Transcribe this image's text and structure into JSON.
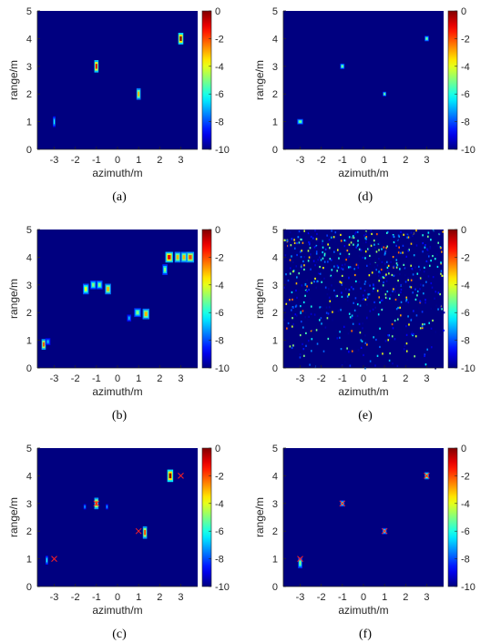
{
  "chart_data": [
    {
      "type": "heatmap",
      "panel": "a",
      "caption": "(a)",
      "xlabel": "azimuth/m",
      "ylabel": "range/m",
      "xlim": [
        -3.8,
        3.8
      ],
      "ylim": [
        0,
        5
      ],
      "xticks": [
        "-3",
        "-2",
        "-1",
        "0",
        "1",
        "2",
        "3"
      ],
      "yticks": [
        "0",
        "1",
        "2",
        "3",
        "4",
        "5"
      ],
      "colorbar": {
        "ticks": [
          "0",
          "-2",
          "-4",
          "-6",
          "-8",
          "-10"
        ],
        "range": [
          -10,
          0
        ],
        "colormap": "jet"
      },
      "background_value": -10,
      "hotspots": [
        {
          "x": -3.0,
          "y": 1.0,
          "peak": -6,
          "w": 0.03,
          "h": 0.12
        },
        {
          "x": -1.0,
          "y": 3.0,
          "peak": -1,
          "w": 0.05,
          "h": 0.14
        },
        {
          "x": 1.0,
          "y": 2.0,
          "peak": -3,
          "w": 0.05,
          "h": 0.13
        },
        {
          "x": 3.0,
          "y": 4.0,
          "peak": 0,
          "w": 0.06,
          "h": 0.13
        }
      ],
      "markers": []
    },
    {
      "type": "heatmap",
      "panel": "d",
      "caption": "(d)",
      "xlabel": "azimuth/m",
      "ylabel": "range/m",
      "xlim": [
        -3.8,
        3.8
      ],
      "ylim": [
        0,
        5
      ],
      "xticks": [
        "-3",
        "-2",
        "-1",
        "0",
        "1",
        "2",
        "3"
      ],
      "yticks": [
        "0",
        "1",
        "2",
        "3",
        "4",
        "5"
      ],
      "colorbar": {
        "ticks": [
          "0",
          "-2",
          "-4",
          "-6",
          "-8",
          "-10"
        ],
        "range": [
          -10,
          0
        ],
        "colormap": "jet"
      },
      "background_value": -10,
      "hotspots": [
        {
          "x": -3.0,
          "y": 1.0,
          "peak": -5,
          "w": 0.07,
          "h": 0.06
        },
        {
          "x": -1.0,
          "y": 3.0,
          "peak": -5,
          "w": 0.05,
          "h": 0.06
        },
        {
          "x": 1.0,
          "y": 2.0,
          "peak": -5,
          "w": 0.04,
          "h": 0.05
        },
        {
          "x": 3.0,
          "y": 4.0,
          "peak": -5,
          "w": 0.05,
          "h": 0.06
        }
      ],
      "markers": []
    },
    {
      "type": "heatmap",
      "panel": "b",
      "caption": "(b)",
      "xlabel": "azimuth/m",
      "ylabel": "range/m",
      "xlim": [
        -3.8,
        3.8
      ],
      "ylim": [
        0,
        5
      ],
      "xticks": [
        "-3",
        "-2",
        "-1",
        "0",
        "1",
        "2",
        "3"
      ],
      "yticks": [
        "0",
        "1",
        "2",
        "3",
        "4",
        "5"
      ],
      "colorbar": {
        "ticks": [
          "0",
          "-2",
          "-4",
          "-6",
          "-8",
          "-10"
        ],
        "range": [
          -10,
          0
        ],
        "colormap": "jet"
      },
      "background_value": -10,
      "hotspots": [
        {
          "x": -3.5,
          "y": 0.85,
          "peak": -2,
          "w": 0.05,
          "h": 0.12
        },
        {
          "x": -3.3,
          "y": 0.95,
          "peak": -7,
          "w": 0.06,
          "h": 0.08
        },
        {
          "x": -1.5,
          "y": 2.85,
          "peak": -4,
          "w": 0.07,
          "h": 0.12
        },
        {
          "x": -1.15,
          "y": 3.0,
          "peak": -5,
          "w": 0.07,
          "h": 0.1
        },
        {
          "x": -0.85,
          "y": 3.0,
          "peak": -5,
          "w": 0.07,
          "h": 0.1
        },
        {
          "x": -0.45,
          "y": 2.85,
          "peak": -3,
          "w": 0.07,
          "h": 0.12
        },
        {
          "x": 0.55,
          "y": 1.8,
          "peak": -7,
          "w": 0.05,
          "h": 0.08
        },
        {
          "x": 0.95,
          "y": 2.0,
          "peak": -5,
          "w": 0.08,
          "h": 0.1
        },
        {
          "x": 1.35,
          "y": 1.95,
          "peak": -3,
          "w": 0.08,
          "h": 0.12
        },
        {
          "x": 2.25,
          "y": 3.55,
          "peak": -5,
          "w": 0.06,
          "h": 0.12
        },
        {
          "x": 2.45,
          "y": 4.0,
          "peak": -1,
          "w": 0.09,
          "h": 0.12
        },
        {
          "x": 2.85,
          "y": 4.0,
          "peak": -3,
          "w": 0.07,
          "h": 0.12
        },
        {
          "x": 3.15,
          "y": 4.0,
          "peak": -3,
          "w": 0.07,
          "h": 0.12
        },
        {
          "x": 3.45,
          "y": 4.0,
          "peak": -2,
          "w": 0.09,
          "h": 0.12
        }
      ],
      "markers": []
    },
    {
      "type": "heatmap",
      "panel": "e",
      "caption": "(e)",
      "xlabel": "azimuth/m",
      "ylabel": "range/m",
      "xlim": [
        -3.8,
        3.8
      ],
      "ylim": [
        0,
        5
      ],
      "xticks": [
        "-3",
        "-2",
        "-1",
        "0",
        "1",
        "2",
        "3"
      ],
      "yticks": [
        "0",
        "1",
        "2",
        "3",
        "4",
        "5"
      ],
      "colorbar": {
        "ticks": [
          "0",
          "-2",
          "-4",
          "-6",
          "-8",
          "-10"
        ],
        "range": [
          -10,
          0
        ],
        "colormap": "jet"
      },
      "background_value": -10,
      "hotspots": [],
      "scatter_noise": true,
      "markers": []
    },
    {
      "type": "heatmap",
      "panel": "c",
      "caption": "(c)",
      "xlabel": "azimuth/m",
      "ylabel": "range/m",
      "xlim": [
        -3.8,
        3.8
      ],
      "ylim": [
        0,
        5
      ],
      "xticks": [
        "-3",
        "-2",
        "-1",
        "0",
        "1",
        "2",
        "3"
      ],
      "yticks": [
        "0",
        "1",
        "2",
        "3",
        "4",
        "5"
      ],
      "colorbar": {
        "ticks": [
          "0",
          "-2",
          "-4",
          "-6",
          "-8",
          "-10"
        ],
        "range": [
          -10,
          0
        ],
        "colormap": "jet"
      },
      "background_value": -10,
      "hotspots": [
        {
          "x": -3.35,
          "y": 0.95,
          "peak": -6,
          "w": 0.03,
          "h": 0.1
        },
        {
          "x": -1.0,
          "y": 3.0,
          "peak": -2,
          "w": 0.05,
          "h": 0.13
        },
        {
          "x": -1.55,
          "y": 2.88,
          "peak": -7,
          "w": 0.03,
          "h": 0.06
        },
        {
          "x": -0.5,
          "y": 2.88,
          "peak": -7,
          "w": 0.03,
          "h": 0.06
        },
        {
          "x": 1.3,
          "y": 1.95,
          "peak": -2,
          "w": 0.05,
          "h": 0.14
        },
        {
          "x": 2.5,
          "y": 4.0,
          "peak": 0,
          "w": 0.07,
          "h": 0.14
        }
      ],
      "markers": [
        {
          "x": -3.0,
          "y": 1.0
        },
        {
          "x": -1.0,
          "y": 3.0
        },
        {
          "x": 1.0,
          "y": 2.0
        },
        {
          "x": 3.0,
          "y": 4.0
        }
      ]
    },
    {
      "type": "heatmap",
      "panel": "f",
      "caption": "(f)",
      "xlabel": "azimuth/m",
      "ylabel": "range/m",
      "xlim": [
        -3.8,
        3.8
      ],
      "ylim": [
        0,
        5
      ],
      "xticks": [
        "-3",
        "-2",
        "-1",
        "0",
        "1",
        "2",
        "3"
      ],
      "yticks": [
        "0",
        "1",
        "2",
        "3",
        "4",
        "5"
      ],
      "colorbar": {
        "ticks": [
          "0",
          "-2",
          "-4",
          "-6",
          "-8",
          "-10"
        ],
        "range": [
          -10,
          0
        ],
        "colormap": "jet"
      },
      "background_value": -10,
      "hotspots": [
        {
          "x": -3.0,
          "y": 0.85,
          "peak": -5,
          "w": 0.05,
          "h": 0.12
        },
        {
          "x": -1.0,
          "y": 3.0,
          "peak": -5,
          "w": 0.05,
          "h": 0.07
        },
        {
          "x": 1.0,
          "y": 2.0,
          "peak": -5,
          "w": 0.05,
          "h": 0.07
        },
        {
          "x": 3.0,
          "y": 4.0,
          "peak": -3,
          "w": 0.05,
          "h": 0.08
        }
      ],
      "markers": [
        {
          "x": -3.0,
          "y": 1.0
        },
        {
          "x": -1.0,
          "y": 3.0
        },
        {
          "x": 1.0,
          "y": 2.0
        },
        {
          "x": 3.0,
          "y": 4.0
        }
      ]
    }
  ],
  "colors": {
    "background": "#00008f",
    "marker": "#ff2020"
  }
}
